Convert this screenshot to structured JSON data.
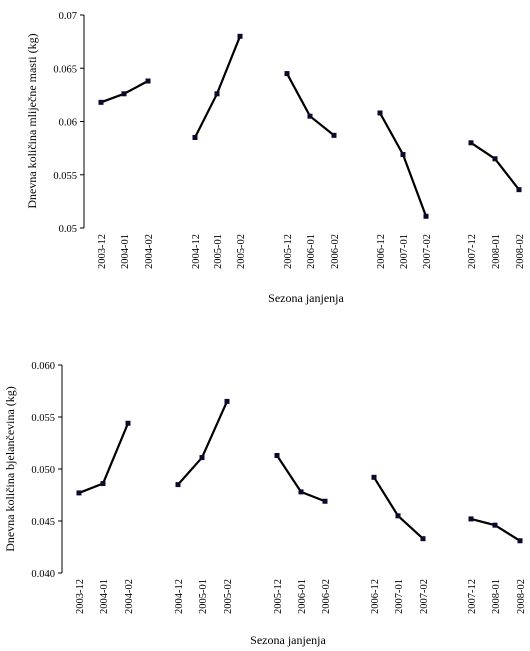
{
  "chart_data": [
    {
      "type": "line",
      "title": "",
      "ylabel": "Dnevna količina mliječne masti (kg)",
      "xlabel": "Sezona janjenja",
      "ylim": [
        0.05,
        0.07
      ],
      "yticks": [
        "0.05",
        "0.055",
        "0.06",
        "0.065",
        "0.07"
      ],
      "grid": false,
      "series": [
        {
          "categories": [
            "2003-12",
            "2004-01",
            "2004-02"
          ],
          "values": [
            0.0618,
            0.0626,
            0.0638
          ]
        },
        {
          "categories": [
            "2004-12",
            "2005-01",
            "2005-02"
          ],
          "values": [
            0.0585,
            0.0626,
            0.068
          ]
        },
        {
          "categories": [
            "2005-12",
            "2006-01",
            "2006-02"
          ],
          "values": [
            0.0645,
            0.0605,
            0.0587
          ]
        },
        {
          "categories": [
            "2006-12",
            "2007-01",
            "2007-02"
          ],
          "values": [
            0.0608,
            0.0569,
            0.0511
          ]
        },
        {
          "categories": [
            "2007-12",
            "2008-01",
            "2008-02"
          ],
          "values": [
            0.058,
            0.0565,
            0.0536
          ]
        }
      ]
    },
    {
      "type": "line",
      "title": "",
      "ylabel": "Dnevna količina bjelančevina (kg)",
      "xlabel": "Sezona janjenja",
      "ylim": [
        0.04,
        0.06
      ],
      "yticks": [
        "0.040",
        "0.045",
        "0.050",
        "0.055",
        "0.060"
      ],
      "grid": false,
      "series": [
        {
          "categories": [
            "2003-12",
            "2004-01",
            "2004-02"
          ],
          "values": [
            0.0477,
            0.0486,
            0.0544
          ]
        },
        {
          "categories": [
            "2004-12",
            "2005-01",
            "2005-02"
          ],
          "values": [
            0.0485,
            0.0511,
            0.0565
          ]
        },
        {
          "categories": [
            "2005-12",
            "2006-01",
            "2006-02"
          ],
          "values": [
            0.0513,
            0.0478,
            0.0469
          ]
        },
        {
          "categories": [
            "2006-12",
            "2007-01",
            "2007-02"
          ],
          "values": [
            0.0492,
            0.0455,
            0.0433
          ]
        },
        {
          "categories": [
            "2007-12",
            "2008-01",
            "2008-02"
          ],
          "values": [
            0.0452,
            0.0446,
            0.0431
          ]
        }
      ]
    }
  ]
}
